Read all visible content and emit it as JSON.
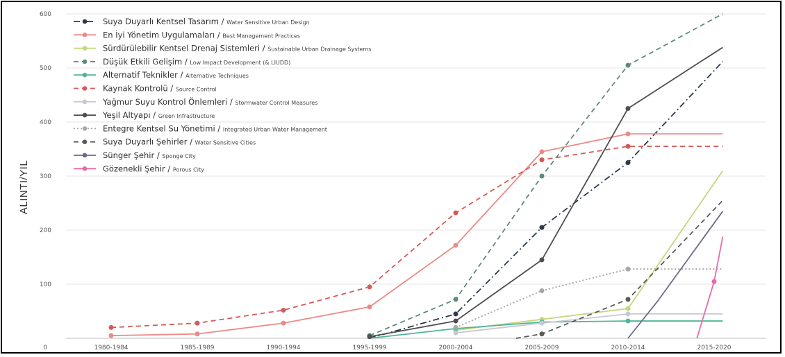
{
  "chart_data": {
    "type": "line",
    "ylabel": "ALINTI/YIL",
    "xlabel": "",
    "title": "",
    "categories": [
      "1980-1984",
      "1985-1989",
      "1990-1994",
      "1995-1999",
      "2000-2004",
      "2005-2009",
      "2010-2014",
      "2015-2020"
    ],
    "y_ticks": [
      "0",
      "100",
      "200",
      "300",
      "400",
      "500",
      "600"
    ],
    "ylim": [
      0,
      600
    ],
    "grid": "horizontal",
    "legend_position": "top-left",
    "series": [
      {
        "name_tr": "Suya Duyarlı Kentsel Tasarım",
        "name_en": "Water Sensitive Urban Design",
        "color": "#2d3a4f",
        "dash": "dashdot",
        "markers": true,
        "points": [
          [
            3,
            0
          ],
          [
            4,
            45
          ],
          [
            5,
            205
          ],
          [
            6,
            325
          ],
          [
            7.1,
            512
          ]
        ]
      },
      {
        "name_tr": "En İyi Yönetim Uygulamaları",
        "name_en": "Best Management Practices",
        "color": "#ec8a86",
        "dash": "solid",
        "markers": true,
        "points": [
          [
            0,
            5
          ],
          [
            1,
            8
          ],
          [
            2,
            28
          ],
          [
            3,
            58
          ],
          [
            4,
            172
          ],
          [
            5,
            345
          ],
          [
            6,
            378
          ],
          [
            7.1,
            378
          ]
        ]
      },
      {
        "name_tr": "Sürdürülebilir Kentsel Drenaj Sistemleri",
        "name_en": "Sustainable Urban Drainage Systems",
        "color": "#c4d67c",
        "dash": "solid",
        "markers": true,
        "points": [
          [
            4,
            15
          ],
          [
            5,
            35
          ],
          [
            6,
            55
          ],
          [
            7.1,
            310
          ]
        ]
      },
      {
        "name_tr": "Düşük Etkili Gelişim",
        "name_en": "Low Impact Development (& LIUDD)",
        "color": "#5f8a7a",
        "dash": "dashed",
        "markers": true,
        "points": [
          [
            3,
            5
          ],
          [
            4,
            72
          ],
          [
            5,
            300
          ],
          [
            6,
            505
          ],
          [
            7.1,
            600
          ]
        ]
      },
      {
        "name_tr": "Alternatif Teknikler",
        "name_en": "Alternative Techniques",
        "color": "#4fb59a",
        "dash": "solid",
        "markers": true,
        "points": [
          [
            3,
            0
          ],
          [
            4,
            18
          ],
          [
            5,
            30
          ],
          [
            6,
            32
          ],
          [
            7.1,
            32
          ]
        ]
      },
      {
        "name_tr": "Kaynak Kontrolü",
        "name_en": "Source Control",
        "color": "#d65a57",
        "dash": "dashed",
        "markers": true,
        "points": [
          [
            0,
            20
          ],
          [
            1,
            28
          ],
          [
            2,
            52
          ],
          [
            3,
            95
          ],
          [
            4,
            232
          ],
          [
            5,
            330
          ],
          [
            6,
            355
          ],
          [
            7.1,
            355
          ]
        ]
      },
      {
        "name_tr": "Yağmur Suyu Kontrol Önlemleri",
        "name_en": "Stormwater Control Measures",
        "color": "#c8c8d4",
        "dash": "solid",
        "markers": true,
        "points": [
          [
            4,
            10
          ],
          [
            5,
            28
          ],
          [
            6,
            45
          ],
          [
            7.1,
            45
          ]
        ]
      },
      {
        "name_tr": "Yeşil Altyapı",
        "name_en": "Green Infrastructure",
        "color": "#4e4e4e",
        "dash": "solid",
        "markers": true,
        "points": [
          [
            3,
            3
          ],
          [
            4,
            32
          ],
          [
            5,
            145
          ],
          [
            6,
            425
          ],
          [
            7.1,
            538
          ]
        ]
      },
      {
        "name_tr": "Entegre Kentsel Su Yönetimi",
        "name_en": "Integrated Urban Water Management",
        "color": "#a8a8a8",
        "dash": "dotted",
        "markers": true,
        "points": [
          [
            4,
            20
          ],
          [
            5,
            88
          ],
          [
            6,
            128
          ],
          [
            7.1,
            128
          ]
        ]
      },
      {
        "name_tr": "Suya Duyarlı Şehirler",
        "name_en": "Water Sensitive Cities",
        "color": "#5a5a5a",
        "dash": "dashed",
        "markers": true,
        "points": [
          [
            4.7,
            0
          ],
          [
            5,
            8
          ],
          [
            6,
            72
          ],
          [
            7.1,
            255
          ]
        ]
      },
      {
        "name_tr": "Sünger Şehir",
        "name_en": "Sponge City",
        "color": "#6a6a8a",
        "dash": "solid",
        "markers": true,
        "points": [
          [
            6,
            0
          ],
          [
            6.35,
            70
          ],
          [
            7.1,
            235
          ]
        ]
      },
      {
        "name_tr": "Gözenekli Şehir",
        "name_en": "Porous City",
        "color": "#e46ca8",
        "dash": "solid",
        "markers": true,
        "points": [
          [
            6.8,
            0
          ],
          [
            7,
            105
          ],
          [
            7.1,
            188
          ]
        ]
      }
    ]
  }
}
